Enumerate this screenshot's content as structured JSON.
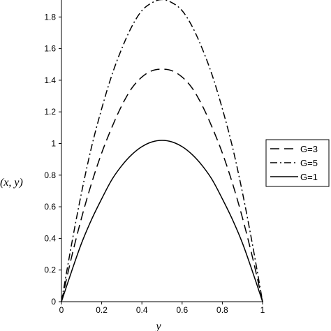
{
  "chart_data": {
    "type": "line",
    "title": "",
    "xlabel": "y",
    "ylabel": "u(x, y)",
    "xlim": [
      0,
      1
    ],
    "ylim": [
      0,
      1.9
    ],
    "x_ticks": [
      "0",
      "0.2",
      "0.4",
      "0.6",
      "0.8",
      "1"
    ],
    "y_ticks": [
      "0",
      "0.2",
      "0.4",
      "0.6",
      "0.8",
      "1",
      "1.2",
      "1.4",
      "1.6",
      "1.8"
    ],
    "grid": false,
    "legend_position": "right",
    "x": [
      0,
      0.05,
      0.1,
      0.15,
      0.2,
      0.25,
      0.3,
      0.35,
      0.4,
      0.45,
      0.5,
      0.55,
      0.6,
      0.65,
      0.7,
      0.75,
      0.8,
      0.85,
      0.9,
      0.95,
      1
    ],
    "series": [
      {
        "name": "G=3",
        "style": "dashed",
        "values": [
          0,
          0.28,
          0.53,
          0.75,
          0.94,
          1.1,
          1.24,
          1.35,
          1.42,
          1.46,
          1.47,
          1.46,
          1.42,
          1.35,
          1.24,
          1.1,
          0.94,
          0.75,
          0.53,
          0.28,
          0
        ]
      },
      {
        "name": "G=5",
        "style": "dashdot",
        "values": [
          0,
          0.36,
          0.69,
          0.98,
          1.22,
          1.43,
          1.6,
          1.74,
          1.84,
          1.89,
          1.91,
          1.89,
          1.84,
          1.74,
          1.6,
          1.43,
          1.22,
          0.98,
          0.69,
          0.36,
          0
        ]
      },
      {
        "name": "G=1",
        "style": "solid",
        "values": [
          0,
          0.19,
          0.37,
          0.52,
          0.65,
          0.77,
          0.86,
          0.93,
          0.98,
          1.01,
          1.02,
          1.01,
          0.98,
          0.93,
          0.86,
          0.77,
          0.65,
          0.52,
          0.37,
          0.19,
          0
        ]
      }
    ]
  }
}
